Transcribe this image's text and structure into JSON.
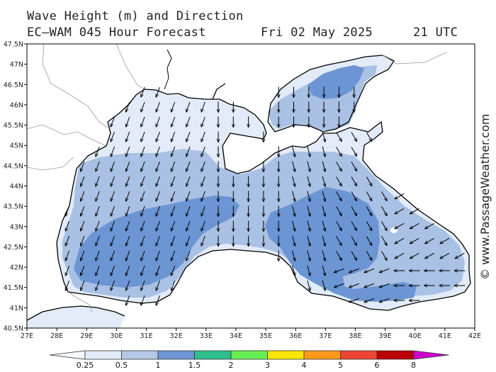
{
  "header": {
    "title": "Wave Height (m) and Direction",
    "model": "EC—WAM 045 Hour Forecast",
    "date": "Fri 02 May 2025",
    "time": "21 UTC"
  },
  "credit": "© www.PassageWeather.com",
  "map": {
    "lon_range": [
      27,
      42
    ],
    "lat_range": [
      40.5,
      47.5
    ],
    "lon_ticks": [
      "27E",
      "28E",
      "29E",
      "30E",
      "31E",
      "32E",
      "33E",
      "34E",
      "35E",
      "36E",
      "37E",
      "38E",
      "39E",
      "40E",
      "41E",
      "42E"
    ],
    "lat_ticks": [
      "47.5N",
      "47N",
      "46.5N",
      "46N",
      "45.5N",
      "45N",
      "44.5N",
      "44N",
      "43.5N",
      "43N",
      "42.5N",
      "42N",
      "41.5N",
      "41N",
      "40.5N"
    ],
    "land_color": "#ffffff",
    "coast_color": "#000000"
  },
  "legend": {
    "labels": [
      "0.25",
      "0.5",
      "1",
      "1.5",
      "2",
      "3",
      "4",
      "5",
      "6",
      "8"
    ],
    "colors": [
      "#e2ebf7",
      "#b3c8e6",
      "#6c95d4",
      "#2fbf8f",
      "#66ee55",
      "#ffe600",
      "#ff9a1a",
      "#ee4433",
      "#bb0000",
      "#cc00cc"
    ]
  },
  "wave_bands": [
    {
      "min_m": 0.25,
      "max_m": 0.5,
      "color": "#e2ebf7"
    },
    {
      "min_m": 0.5,
      "max_m": 1.0,
      "color": "#a9c1e4"
    },
    {
      "min_m": 1.0,
      "max_m": 1.5,
      "color": "#6c95d4"
    }
  ]
}
